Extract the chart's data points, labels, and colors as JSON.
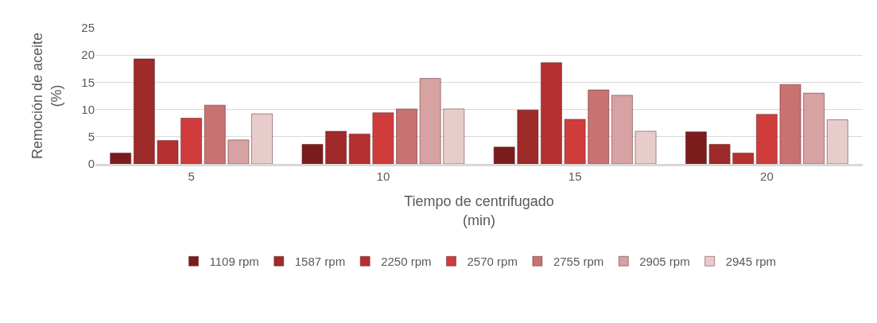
{
  "chart_data": {
    "type": "bar",
    "xlabel": "Tiempo de centrifugado\n(min)",
    "ylabel": "Remoción de aceite\n(%)",
    "categories": [
      "5",
      "10",
      "15",
      "20"
    ],
    "series": [
      {
        "name": "1109 rpm",
        "color": "#7b1c1c",
        "values": [
          2.0,
          3.6,
          3.1,
          5.9
        ]
      },
      {
        "name": "1587 rpm",
        "color": "#9e2a2a",
        "values": [
          19.3,
          6.0,
          9.9,
          3.6
        ]
      },
      {
        "name": "2250 rpm",
        "color": "#b53030",
        "values": [
          4.3,
          5.5,
          18.6,
          2.0
        ]
      },
      {
        "name": "2570 rpm",
        "color": "#d03c3c",
        "values": [
          8.4,
          9.4,
          8.2,
          9.1
        ]
      },
      {
        "name": "2755 rpm",
        "color": "#c87272",
        "values": [
          10.8,
          10.1,
          13.6,
          14.6
        ]
      },
      {
        "name": "2905 rpm",
        "color": "#d6a2a2",
        "values": [
          4.4,
          15.7,
          12.6,
          13.0
        ]
      },
      {
        "name": "2945 rpm",
        "color": "#e8cccc",
        "values": [
          9.2,
          10.1,
          6.0,
          8.1
        ]
      }
    ],
    "ylim": [
      0,
      25
    ],
    "yticks": [
      0,
      5,
      10,
      15,
      20,
      25
    ],
    "grid": "y",
    "legend": "bottom"
  }
}
